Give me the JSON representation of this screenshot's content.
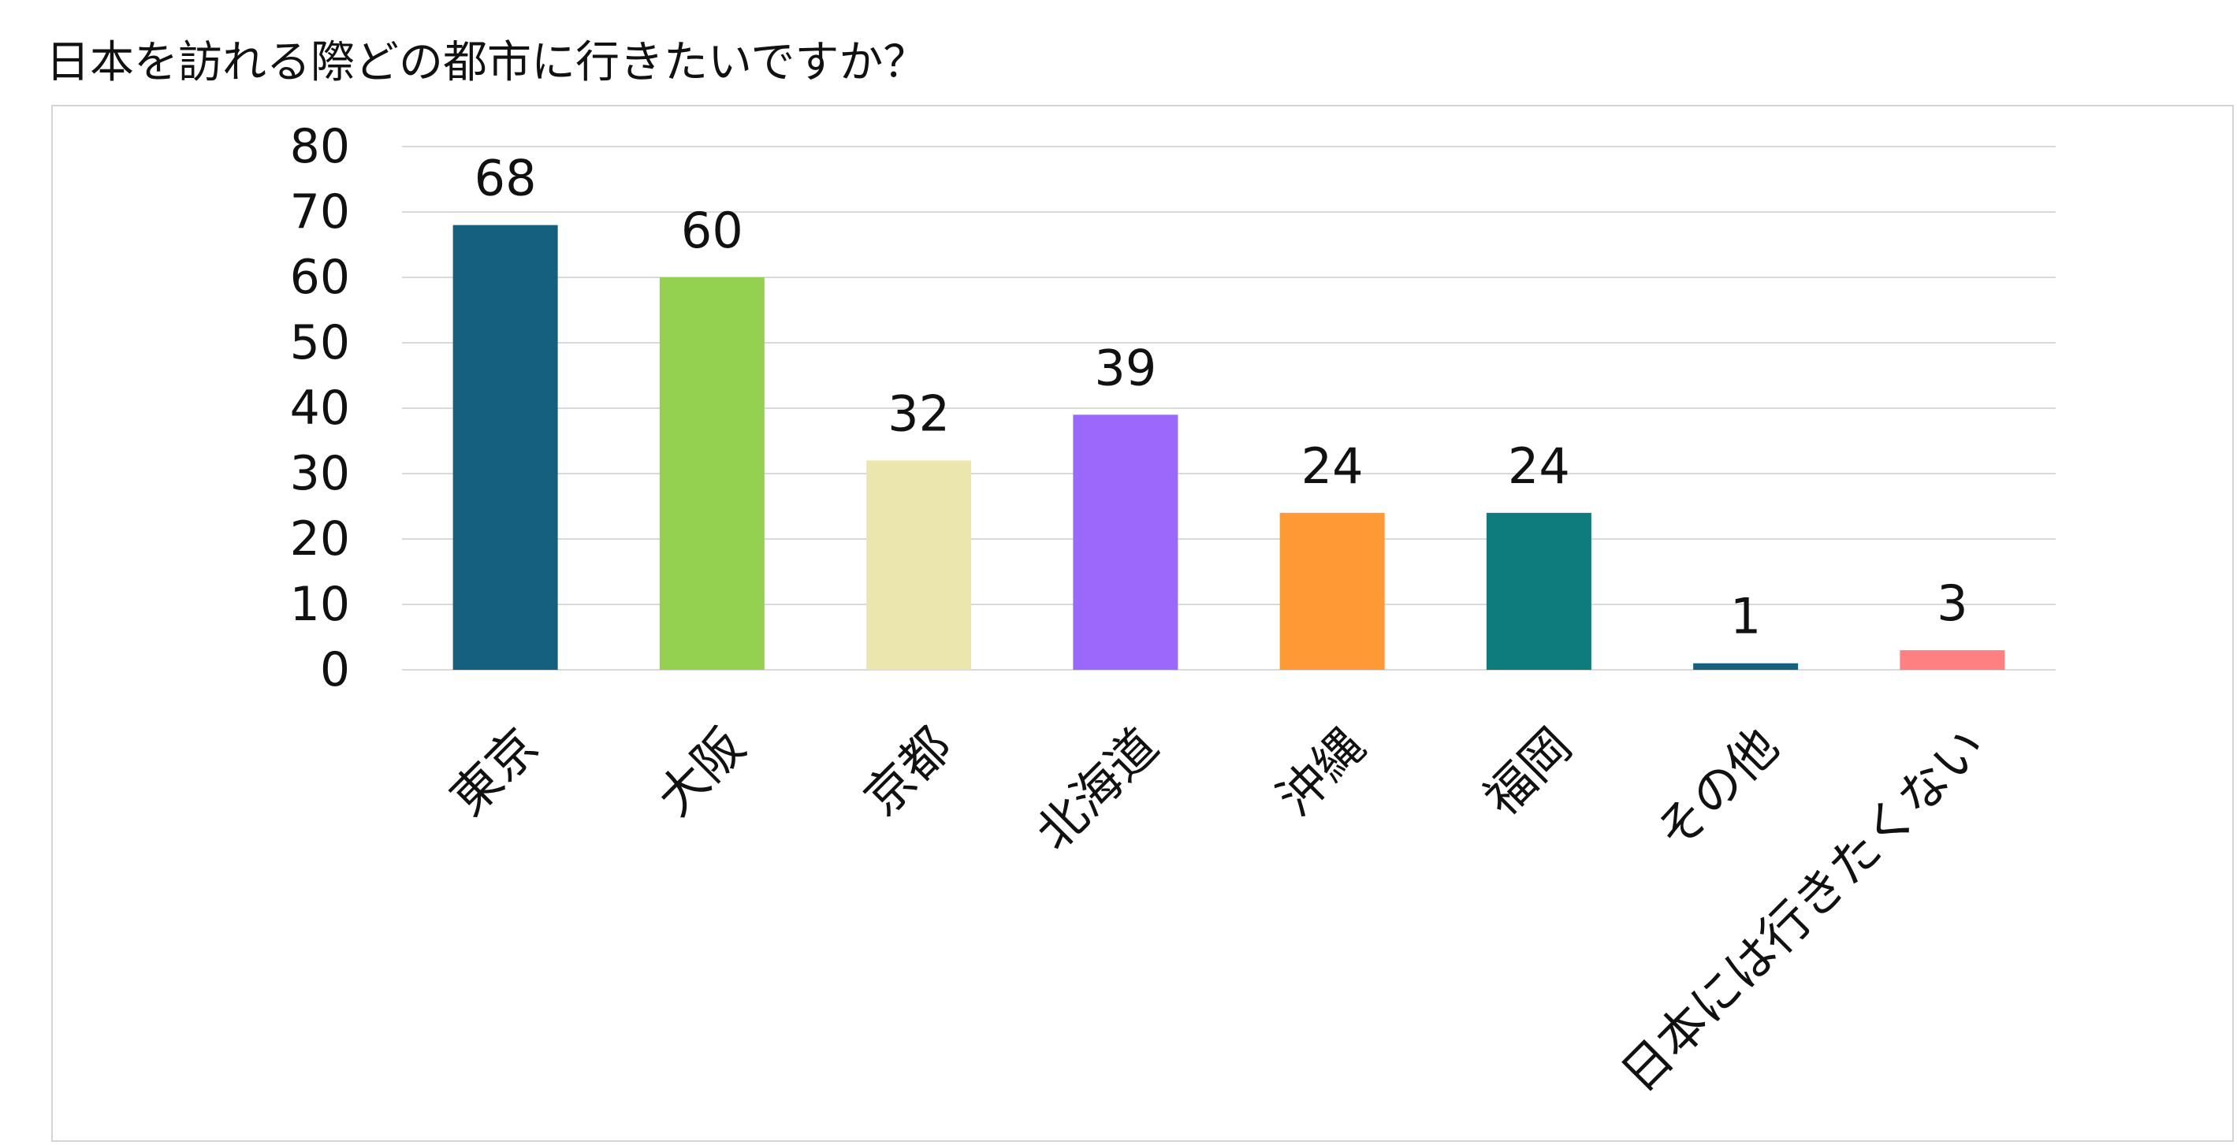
{
  "chart_data": {
    "type": "bar",
    "title": "日本を訪れる際どの都市に行きたいですか？",
    "categories": [
      "東京",
      "大阪",
      "京都",
      "北海道",
      "沖縄",
      "福岡",
      "その他",
      "日本には行きたくない"
    ],
    "values": [
      68,
      60,
      32,
      39,
      24,
      24,
      1,
      3
    ],
    "colors": [
      "#15607f",
      "#95d150",
      "#ebe6ae",
      "#9a68fb",
      "#fd9a36",
      "#0e7b7c",
      "#15607f",
      "#ff8080"
    ],
    "xlabel": "",
    "ylabel": "",
    "ylim": [
      0,
      80
    ],
    "yticks": [
      0,
      10,
      20,
      30,
      40,
      50,
      60,
      70,
      80
    ],
    "grid": true,
    "gridColor": "#d9d9d9",
    "legend": "none",
    "data_labels": true
  }
}
